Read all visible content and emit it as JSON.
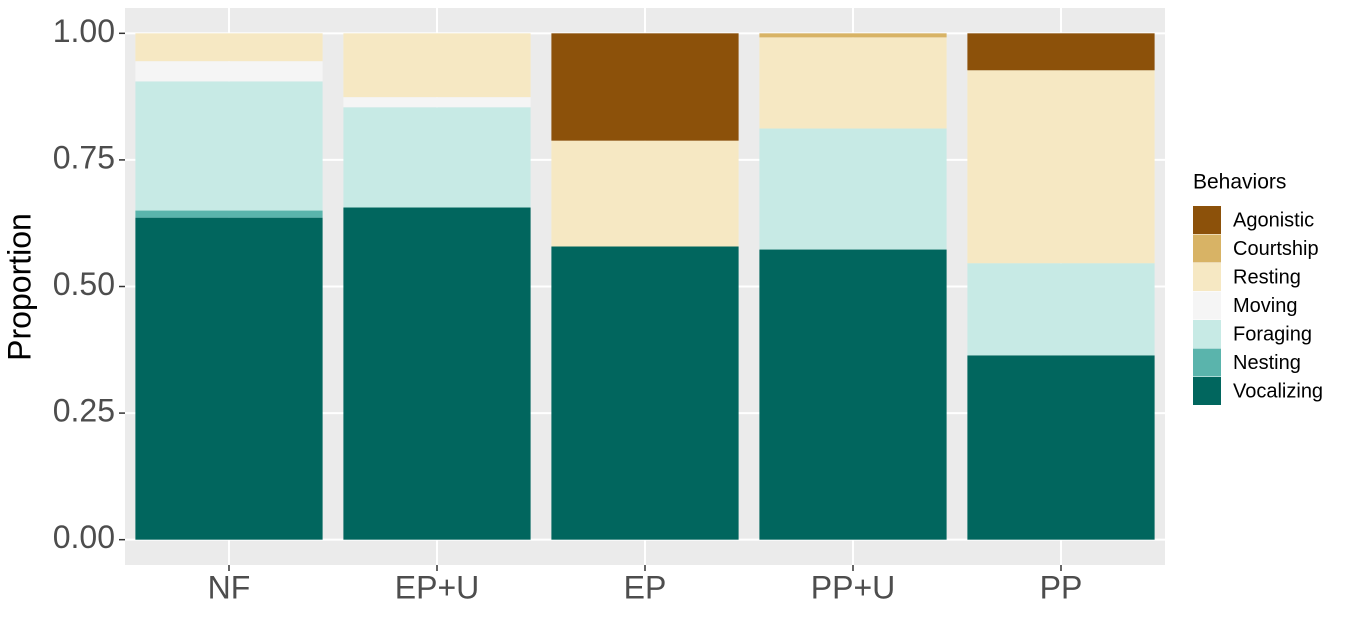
{
  "chart_data": {
    "type": "stacked-bar",
    "y_label": "Proportion",
    "legend_title": "Behaviors",
    "legend_position": "right",
    "grid": true,
    "categories": [
      "NF",
      "EP+U",
      "EP",
      "PP+U",
      "PP"
    ],
    "ylim": [
      -0.05,
      1.05
    ],
    "yticks": [
      {
        "value": 0,
        "label": "0.00"
      },
      {
        "value": 0.25,
        "label": "0.25"
      },
      {
        "value": 0.5,
        "label": "0.50"
      },
      {
        "value": 0.75,
        "label": "0.75"
      },
      {
        "value": 1,
        "label": "1.00"
      }
    ],
    "series": [
      {
        "name": "Agonistic",
        "color": "#8c510a",
        "values": [
          0,
          0,
          0.212,
          0,
          0.073
        ]
      },
      {
        "name": "Courtship",
        "color": "#d8b365",
        "values": [
          0,
          0,
          0,
          0.008,
          0
        ]
      },
      {
        "name": "Resting",
        "color": "#f6e8c3",
        "values": [
          0.055,
          0.126,
          0.209,
          0.18,
          0.381
        ]
      },
      {
        "name": "Moving",
        "color": "#f5f5f5",
        "values": [
          0.04,
          0.02,
          0,
          0,
          0
        ]
      },
      {
        "name": "Foraging",
        "color": "#c7eae5",
        "values": [
          0.255,
          0.198,
          0,
          0.239,
          0.182
        ]
      },
      {
        "name": "Nesting",
        "color": "#5ab4ac",
        "values": [
          0.014,
          0,
          0,
          0,
          0
        ]
      },
      {
        "name": "Vocalizing",
        "color": "#01665e",
        "values": [
          0.636,
          0.656,
          0.579,
          0.573,
          0.364
        ]
      }
    ]
  }
}
